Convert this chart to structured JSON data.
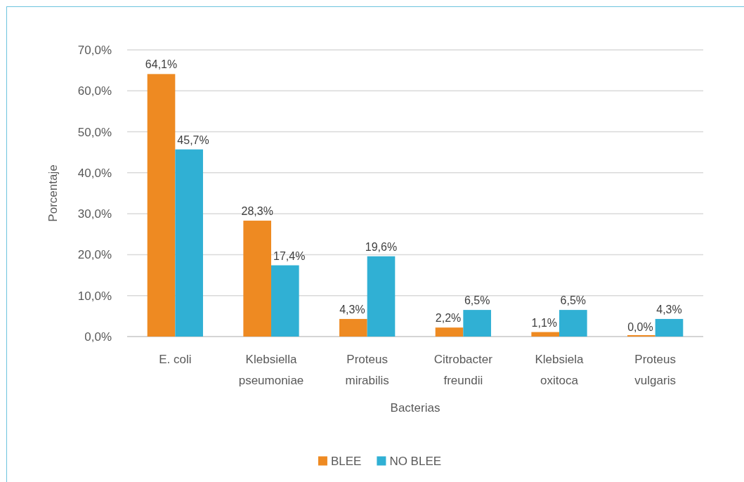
{
  "chart_data": {
    "type": "bar",
    "xlabel": "Bacterias",
    "ylabel": "Porcentaje",
    "categories": [
      "E. coli",
      "Klebsiella pseumoniae",
      "Proteus mirabilis",
      "Citrobacter freundii",
      "Klebsiela oxitoca",
      "Proteus vulgaris"
    ],
    "series": [
      {
        "name": "BLEE",
        "color": "#ee8a22",
        "values": [
          64.1,
          28.3,
          4.3,
          2.2,
          1.1,
          0.0
        ],
        "value_labels": [
          "64,1%",
          "28,3%",
          "4,3%",
          "2,2%",
          "1,1%",
          "0,0%"
        ]
      },
      {
        "name": "NO BLEE",
        "color": "#30b0d4",
        "values": [
          45.7,
          17.4,
          19.6,
          6.5,
          6.5,
          4.3
        ],
        "value_labels": [
          "45,7%",
          "17,4%",
          "19,6%",
          "6,5%",
          "6,5%",
          "4,3%"
        ]
      }
    ],
    "ylim": [
      0,
      70
    ],
    "yticks": [
      {
        "value": 0,
        "label": "0,0%"
      },
      {
        "value": 10,
        "label": "10,0%"
      },
      {
        "value": 20,
        "label": "20,0%"
      },
      {
        "value": 30,
        "label": "30,0%"
      },
      {
        "value": 40,
        "label": "40,0%"
      },
      {
        "value": 50,
        "label": "50,0%"
      },
      {
        "value": 60,
        "label": "60,0%"
      },
      {
        "value": 70,
        "label": "70,0%"
      }
    ],
    "grid": "y",
    "legend": "bottom"
  }
}
